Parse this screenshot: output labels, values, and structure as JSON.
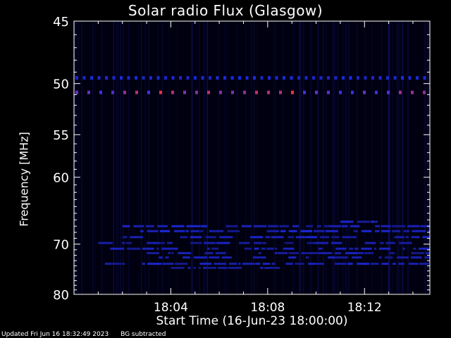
{
  "chart_data": {
    "type": "heatmap",
    "title": "Solar radio Flux (Glasgow)",
    "xlabel": "Start Time (16-Jun-23 18:00:00)",
    "ylabel": "Frequency [MHz]",
    "x_unit": "minutes after 18:00:00",
    "xlim": [
      0,
      14.7
    ],
    "ylim": [
      45,
      80
    ],
    "y_scale": "reciprocal",
    "x_ticks": [
      {
        "value": 4,
        "label": "18:04"
      },
      {
        "value": 8,
        "label": "18:08"
      },
      {
        "value": 12,
        "label": "18:12"
      }
    ],
    "y_ticks": [
      {
        "value": 45,
        "label": "45"
      },
      {
        "value": 50,
        "label": "50"
      },
      {
        "value": 55,
        "label": "55"
      },
      {
        "value": 60,
        "label": "60"
      },
      {
        "value": 70,
        "label": "70"
      },
      {
        "value": 80,
        "label": "80"
      }
    ],
    "bands": [
      {
        "freq": 49.5,
        "intensity": 0.5,
        "t": [
          0,
          14.7
        ],
        "dashed": true
      },
      {
        "freq": 50.8,
        "intensity": 0.85,
        "t": [
          0,
          14.7
        ],
        "dashed": true
      },
      {
        "freq": 67.0,
        "intensity": 0.35,
        "t": [
          2.0,
          14.7
        ]
      },
      {
        "freq": 66.3,
        "intensity": 0.4,
        "t": [
          11.0,
          13.0
        ]
      },
      {
        "freq": 67.8,
        "intensity": 0.4,
        "t": [
          2.0,
          14.7
        ]
      },
      {
        "freq": 68.8,
        "intensity": 0.35,
        "t": [
          2.0,
          14.7
        ]
      },
      {
        "freq": 69.8,
        "intensity": 0.3,
        "t": [
          1.0,
          14.7
        ]
      },
      {
        "freq": 70.8,
        "intensity": 0.35,
        "t": [
          1.5,
          14.7
        ]
      },
      {
        "freq": 71.6,
        "intensity": 0.3,
        "t": [
          3.0,
          14.7
        ]
      },
      {
        "freq": 72.4,
        "intensity": 0.3,
        "t": [
          3.5,
          14.7
        ]
      },
      {
        "freq": 73.6,
        "intensity": 0.35,
        "t": [
          0.3,
          14.7
        ]
      },
      {
        "freq": 74.4,
        "intensity": 0.25,
        "t": [
          4.0,
          8.5
        ]
      }
    ],
    "colors": {
      "background": "#000010",
      "low": "#101060",
      "mid": "#2030ff",
      "high": "#ff3030"
    }
  },
  "footer": {
    "updated": "Updated Fri Jun 16 18:32:49 2023",
    "mode": "BG subtracted"
  }
}
